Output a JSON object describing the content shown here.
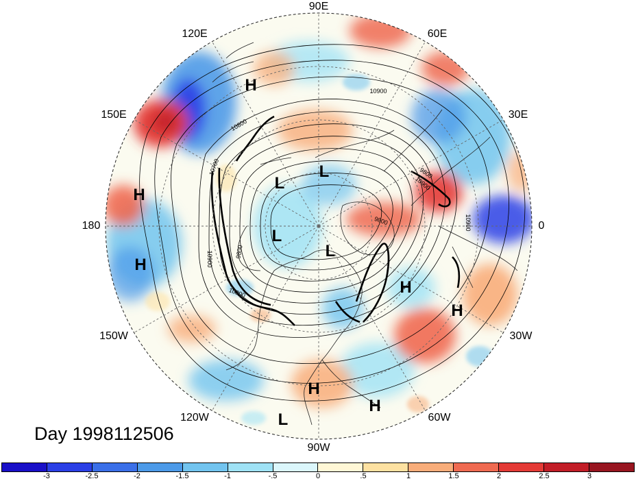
{
  "map": {
    "projection": "north-polar-stereographic",
    "longitude_labels": [
      "0",
      "30E",
      "60E",
      "90E",
      "120E",
      "150E",
      "180",
      "150W",
      "120W",
      "90W",
      "60W",
      "30W"
    ],
    "pressure_centers": [
      {
        "symbol": "H"
      },
      {
        "symbol": "L"
      },
      {
        "symbol": "L"
      },
      {
        "symbol": "L"
      },
      {
        "symbol": "L"
      },
      {
        "symbol": "H"
      },
      {
        "symbol": "H"
      },
      {
        "symbol": "H"
      },
      {
        "symbol": "H"
      },
      {
        "symbol": "H"
      },
      {
        "symbol": "H"
      },
      {
        "symbol": "L"
      }
    ],
    "contour_labels": [
      "10900",
      "10800",
      "10700",
      "10900",
      "9800",
      "9800",
      "10900",
      "10900",
      "10800",
      "9800"
    ]
  },
  "title": {
    "day_label": "Day 1998112506"
  },
  "colorbar": {
    "colors": [
      "#1910c8",
      "#2a3fe6",
      "#3a6fe8",
      "#4c9ae8",
      "#72c4ef",
      "#9fe2f5",
      "#dbf6fb",
      "#fff7d6",
      "#fde1a1",
      "#f8ad7a",
      "#ef6a51",
      "#e43a36",
      "#c21d27",
      "#981520"
    ],
    "tick_labels": [
      "-3",
      "-2.5",
      "-2",
      "-1.5",
      "-1",
      "-.5",
      "0",
      ".5",
      "1",
      "1.5",
      "2",
      "2.5",
      "3"
    ]
  }
}
